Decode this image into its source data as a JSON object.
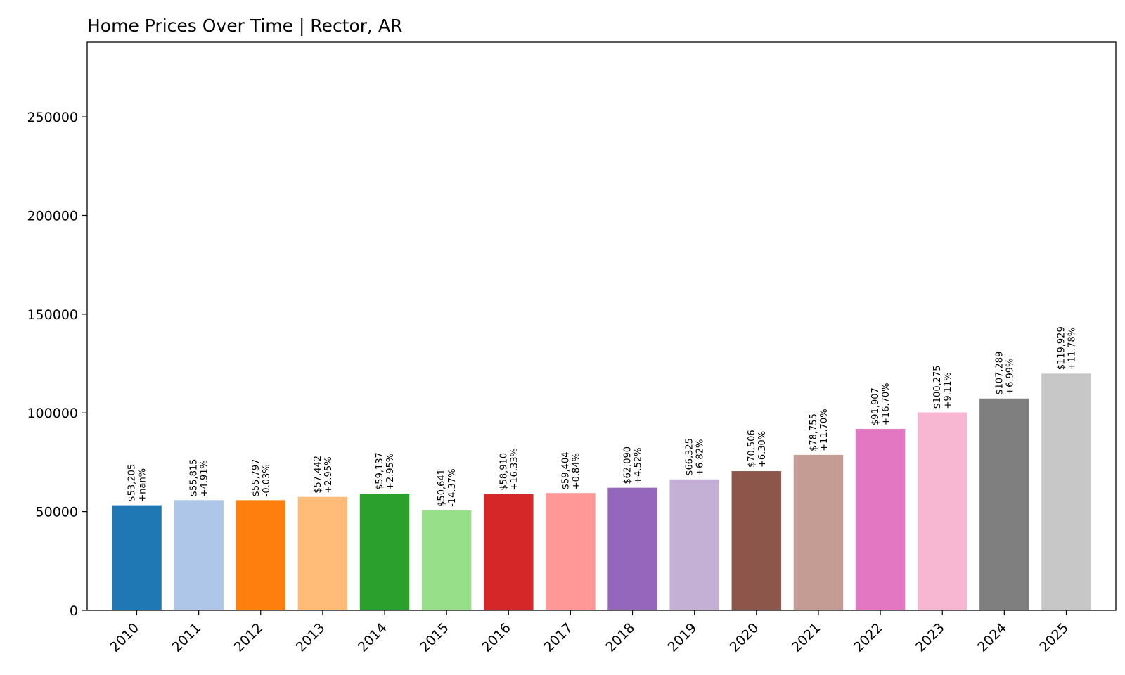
{
  "chart_data": {
    "type": "bar",
    "title": "Home Prices Over Time | Rector, AR",
    "xlabel": "",
    "ylabel": "",
    "categories": [
      "2010",
      "2011",
      "2012",
      "2013",
      "2014",
      "2015",
      "2016",
      "2017",
      "2018",
      "2019",
      "2020",
      "2021",
      "2022",
      "2023",
      "2024",
      "2025"
    ],
    "values": [
      53205,
      55815,
      55797,
      57442,
      59137,
      50641,
      58910,
      59404,
      62090,
      66325,
      70506,
      78755,
      91907,
      100275,
      107289,
      119929
    ],
    "value_labels": [
      "$53,205",
      "$55,815",
      "$55,797",
      "$57,442",
      "$59,137",
      "$50,641",
      "$58,910",
      "$59,404",
      "$62,090",
      "$66,325",
      "$70,506",
      "$78,755",
      "$91,907",
      "$100,275",
      "$107,289",
      "$119,929"
    ],
    "change_labels": [
      "+nan%",
      "+4.91%",
      "-0.03%",
      "+2.95%",
      "+2.95%",
      "-14.37%",
      "+16.33%",
      "+0.84%",
      "+4.52%",
      "+6.82%",
      "+6.30%",
      "+11.70%",
      "+16.70%",
      "+9.11%",
      "+6.99%",
      "+11.78%"
    ],
    "colors": [
      "#1f77b4",
      "#aec7e8",
      "#ff7f0e",
      "#ffbb78",
      "#2ca02c",
      "#98df8a",
      "#d62728",
      "#ff9896",
      "#9467bd",
      "#c5b0d5",
      "#8c564b",
      "#c49c94",
      "#e377c2",
      "#f7b6d2",
      "#7f7f7f",
      "#c7c7c7"
    ],
    "ylim": [
      0,
      287800
    ],
    "yticks": [
      0,
      50000,
      100000,
      150000,
      200000,
      250000
    ],
    "ytick_labels": [
      "0",
      "50000",
      "100000",
      "150000",
      "200000",
      "250000"
    ],
    "grid": false,
    "legend": "none"
  }
}
